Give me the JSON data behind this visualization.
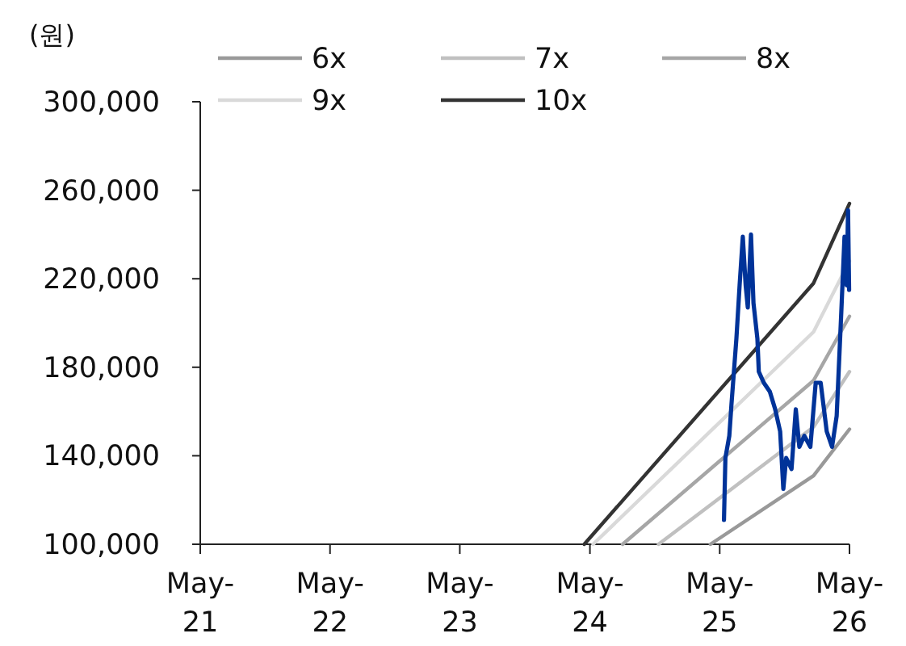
{
  "chart_data": {
    "type": "line",
    "ylabel": "(원)",
    "legend": "top",
    "grid": false,
    "marker": "none",
    "line_style": "solid",
    "xlim": [
      "2021-05",
      "2026-05"
    ],
    "xticks": [
      {
        "value": "2021-05",
        "label": "May-21"
      },
      {
        "value": "2022-05",
        "label": "May-22"
      },
      {
        "value": "2023-05",
        "label": "May-23"
      },
      {
        "value": "2024-05",
        "label": "May-24"
      },
      {
        "value": "2025-05",
        "label": "May-25"
      },
      {
        "value": "2026-05",
        "label": "May-26"
      }
    ],
    "ylim": [
      100000,
      300000
    ],
    "yticks": [
      {
        "value": 100000,
        "label": "100,000"
      },
      {
        "value": 140000,
        "label": "140,000"
      },
      {
        "value": 180000,
        "label": "180,000"
      },
      {
        "value": 220000,
        "label": "220,000"
      },
      {
        "value": 260000,
        "label": "260,000"
      },
      {
        "value": 300000,
        "label": "300,000"
      }
    ],
    "series": [
      {
        "name": "6x",
        "color": "#999999",
        "x": [
          "2025-04-05",
          "2026-01-20",
          "2026-05-01"
        ],
        "values": [
          100000,
          131000,
          152000
        ]
      },
      {
        "name": "7x",
        "color": "#c0c0c0",
        "x": [
          "2024-11-10",
          "2026-01-20",
          "2026-05-01"
        ],
        "values": [
          100000,
          153000,
          178000
        ]
      },
      {
        "name": "8x",
        "color": "#a6a6a6",
        "x": [
          "2024-08-01",
          "2026-01-20",
          "2026-05-01"
        ],
        "values": [
          100000,
          174000,
          203000
        ]
      },
      {
        "name": "9x",
        "color": "#d9d9d9",
        "x": [
          "2024-05-10",
          "2026-01-20",
          "2026-05-01"
        ],
        "values": [
          100000,
          196000,
          228000
        ]
      },
      {
        "name": "10x",
        "color": "#333333",
        "x": [
          "2024-04-15",
          "2026-01-20",
          "2026-05-01"
        ],
        "values": [
          100000,
          218000,
          254000
        ]
      },
      {
        "color": "#003399",
        "x": [
          "2025-05-13",
          "2025-05-17",
          "2025-05-28",
          "2025-06-03",
          "2025-06-17",
          "2025-06-26",
          "2025-07-05",
          "2025-07-13",
          "2025-07-19",
          "2025-07-28",
          "2025-08-04",
          "2025-08-15",
          "2025-08-19",
          "2025-09-02",
          "2025-09-19",
          "2025-10-04",
          "2025-10-18",
          "2025-10-27",
          "2025-11-04",
          "2025-11-19",
          "2025-12-01",
          "2025-12-11",
          "2025-12-25",
          "2026-01-11",
          "2026-01-26",
          "2026-02-09",
          "2026-02-26",
          "2026-03-13",
          "2026-03-26",
          "2026-04-08",
          "2026-04-17",
          "2026-04-23",
          "2026-04-27",
          "2026-04-30"
        ],
        "values": [
          111000,
          139000,
          149000,
          163000,
          193000,
          217000,
          239000,
          217000,
          207000,
          240000,
          209000,
          193000,
          178000,
          173000,
          169000,
          161000,
          151000,
          125000,
          139000,
          134000,
          161000,
          144000,
          149000,
          144000,
          173000,
          173000,
          151000,
          144000,
          158000,
          205000,
          239000,
          217000,
          251000,
          215000
        ]
      }
    ]
  }
}
